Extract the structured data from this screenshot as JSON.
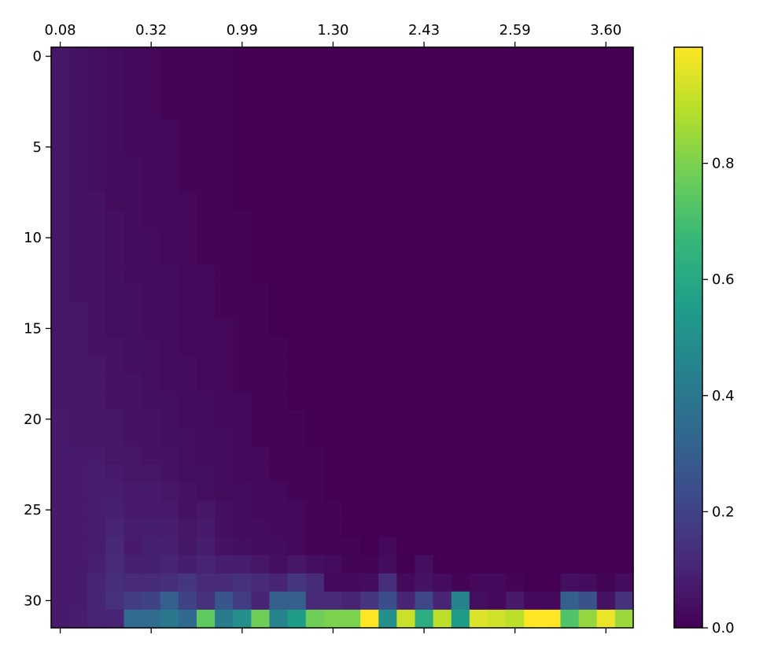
{
  "chart_data": {
    "type": "heatmap",
    "title": "",
    "xlabel": "",
    "ylabel": "",
    "rows": 32,
    "cols": 32,
    "x_tick_labels": [
      "0.08",
      "0.32",
      "0.99",
      "1.30",
      "2.43",
      "2.59",
      "3.60"
    ],
    "x_tick_positions": [
      0,
      5,
      10,
      15,
      20,
      25,
      30
    ],
    "y_tick_labels": [
      "0",
      "5",
      "10",
      "15",
      "20",
      "25",
      "30"
    ],
    "y_tick_positions": [
      0,
      5,
      10,
      15,
      20,
      25,
      30
    ],
    "colorbar": {
      "min": 0.0,
      "max": 1.0,
      "tick_values": [
        0.0,
        0.2,
        0.4,
        0.6,
        0.8
      ],
      "tick_labels": [
        "0.0",
        "0.2",
        "0.4",
        "0.6",
        "0.8"
      ],
      "colormap": "viridis"
    },
    "colors": {
      "viridis_stops": [
        "#440154",
        "#482878",
        "#3e4989",
        "#31688e",
        "#26828e",
        "#1f9e89",
        "#35b779",
        "#6ece58",
        "#b5de2b",
        "#fde725"
      ]
    },
    "values": [
      [
        0.06,
        0.05,
        0.04,
        0.03,
        0.02,
        0.02,
        0.01,
        0.01,
        0.01,
        0.01,
        0,
        0,
        0,
        0,
        0,
        0,
        0,
        0,
        0,
        0,
        0,
        0,
        0,
        0,
        0,
        0,
        0,
        0,
        0,
        0,
        0,
        0
      ],
      [
        0.06,
        0.05,
        0.04,
        0.03,
        0.02,
        0.02,
        0.01,
        0.01,
        0.01,
        0.01,
        0,
        0,
        0,
        0,
        0,
        0,
        0,
        0,
        0,
        0,
        0,
        0,
        0,
        0,
        0,
        0,
        0,
        0,
        0,
        0,
        0,
        0
      ],
      [
        0.06,
        0.05,
        0.04,
        0.03,
        0.02,
        0.02,
        0.01,
        0.01,
        0.01,
        0.01,
        0,
        0,
        0,
        0,
        0,
        0,
        0,
        0,
        0,
        0,
        0,
        0,
        0,
        0,
        0,
        0,
        0,
        0,
        0,
        0,
        0,
        0
      ],
      [
        0.06,
        0.05,
        0.04,
        0.03,
        0.02,
        0.02,
        0.01,
        0.01,
        0.01,
        0.01,
        0,
        0,
        0,
        0,
        0,
        0,
        0,
        0,
        0,
        0,
        0,
        0,
        0,
        0,
        0,
        0,
        0,
        0,
        0,
        0,
        0,
        0
      ],
      [
        0.06,
        0.05,
        0.04,
        0.03,
        0.02,
        0.02,
        0.02,
        0.01,
        0.01,
        0.01,
        0,
        0,
        0,
        0,
        0,
        0,
        0,
        0,
        0,
        0,
        0,
        0,
        0,
        0,
        0,
        0,
        0,
        0,
        0,
        0,
        0,
        0
      ],
      [
        0.06,
        0.05,
        0.04,
        0.03,
        0.02,
        0.02,
        0.02,
        0.01,
        0.01,
        0.01,
        0,
        0,
        0,
        0,
        0,
        0,
        0,
        0,
        0,
        0,
        0,
        0,
        0,
        0,
        0,
        0,
        0,
        0,
        0,
        0,
        0,
        0
      ],
      [
        0.06,
        0.05,
        0.04,
        0.03,
        0.03,
        0.02,
        0.02,
        0.01,
        0.01,
        0.01,
        0,
        0,
        0,
        0,
        0,
        0,
        0,
        0,
        0,
        0,
        0,
        0,
        0,
        0,
        0,
        0,
        0,
        0,
        0,
        0,
        0,
        0
      ],
      [
        0.06,
        0.05,
        0.04,
        0.03,
        0.03,
        0.02,
        0.02,
        0.01,
        0.01,
        0.01,
        0,
        0,
        0,
        0,
        0,
        0,
        0,
        0,
        0,
        0,
        0,
        0,
        0,
        0,
        0,
        0,
        0,
        0,
        0,
        0,
        0,
        0
      ],
      [
        0.06,
        0.05,
        0.05,
        0.03,
        0.03,
        0.02,
        0.02,
        0.02,
        0.01,
        0.01,
        0,
        0,
        0,
        0,
        0,
        0,
        0,
        0,
        0,
        0,
        0,
        0,
        0,
        0,
        0,
        0,
        0,
        0,
        0,
        0,
        0,
        0
      ],
      [
        0.06,
        0.05,
        0.05,
        0.04,
        0.03,
        0.02,
        0.02,
        0.02,
        0.01,
        0.01,
        0.01,
        0,
        0,
        0,
        0,
        0,
        0,
        0,
        0,
        0,
        0,
        0,
        0,
        0,
        0,
        0,
        0,
        0,
        0,
        0,
        0,
        0
      ],
      [
        0.06,
        0.05,
        0.05,
        0.04,
        0.03,
        0.03,
        0.02,
        0.02,
        0.01,
        0.01,
        0.01,
        0,
        0,
        0,
        0,
        0,
        0,
        0,
        0,
        0,
        0,
        0,
        0,
        0,
        0,
        0,
        0,
        0,
        0,
        0,
        0,
        0
      ],
      [
        0.06,
        0.05,
        0.05,
        0.04,
        0.03,
        0.03,
        0.02,
        0.02,
        0.01,
        0.01,
        0.01,
        0,
        0,
        0,
        0,
        0,
        0,
        0,
        0,
        0,
        0,
        0,
        0,
        0,
        0,
        0,
        0,
        0,
        0,
        0,
        0,
        0
      ],
      [
        0.06,
        0.05,
        0.05,
        0.04,
        0.03,
        0.03,
        0.03,
        0.02,
        0.02,
        0.01,
        0.01,
        0,
        0,
        0,
        0,
        0,
        0,
        0,
        0,
        0,
        0,
        0,
        0,
        0,
        0,
        0,
        0,
        0,
        0,
        0,
        0,
        0
      ],
      [
        0.06,
        0.05,
        0.05,
        0.04,
        0.04,
        0.03,
        0.03,
        0.02,
        0.02,
        0.01,
        0.01,
        0.01,
        0,
        0,
        0,
        0,
        0,
        0,
        0,
        0,
        0,
        0,
        0,
        0,
        0,
        0,
        0,
        0,
        0,
        0,
        0,
        0
      ],
      [
        0.06,
        0.06,
        0.05,
        0.04,
        0.04,
        0.03,
        0.03,
        0.02,
        0.02,
        0.01,
        0.01,
        0.01,
        0,
        0,
        0,
        0,
        0,
        0,
        0,
        0,
        0,
        0,
        0,
        0,
        0,
        0,
        0,
        0,
        0,
        0,
        0,
        0
      ],
      [
        0.06,
        0.06,
        0.05,
        0.04,
        0.04,
        0.03,
        0.03,
        0.02,
        0.02,
        0.02,
        0.01,
        0.01,
        0,
        0,
        0,
        0,
        0,
        0,
        0,
        0,
        0,
        0,
        0,
        0,
        0,
        0,
        0,
        0,
        0,
        0,
        0,
        0
      ],
      [
        0.06,
        0.06,
        0.05,
        0.05,
        0.04,
        0.04,
        0.03,
        0.02,
        0.02,
        0.02,
        0.01,
        0.01,
        0.01,
        0,
        0,
        0,
        0,
        0,
        0,
        0,
        0,
        0,
        0,
        0,
        0,
        0,
        0,
        0,
        0,
        0,
        0,
        0
      ],
      [
        0.06,
        0.06,
        0.06,
        0.05,
        0.04,
        0.04,
        0.03,
        0.03,
        0.02,
        0.02,
        0.01,
        0.01,
        0.01,
        0,
        0,
        0,
        0,
        0,
        0,
        0,
        0,
        0,
        0,
        0,
        0,
        0,
        0,
        0,
        0,
        0,
        0,
        0
      ],
      [
        0.06,
        0.06,
        0.06,
        0.05,
        0.05,
        0.04,
        0.03,
        0.03,
        0.02,
        0.02,
        0.01,
        0.01,
        0.01,
        0,
        0,
        0,
        0,
        0,
        0,
        0,
        0,
        0,
        0,
        0,
        0,
        0,
        0,
        0,
        0,
        0,
        0,
        0
      ],
      [
        0.06,
        0.06,
        0.06,
        0.05,
        0.05,
        0.04,
        0.04,
        0.03,
        0.03,
        0.02,
        0.02,
        0.01,
        0.01,
        0,
        0,
        0,
        0,
        0,
        0,
        0,
        0,
        0,
        0,
        0,
        0,
        0,
        0,
        0,
        0,
        0,
        0,
        0
      ],
      [
        0.07,
        0.06,
        0.06,
        0.06,
        0.05,
        0.05,
        0.04,
        0.03,
        0.03,
        0.02,
        0.02,
        0.01,
        0.01,
        0.01,
        0,
        0,
        0,
        0,
        0,
        0,
        0,
        0,
        0,
        0,
        0,
        0,
        0,
        0,
        0,
        0,
        0,
        0
      ],
      [
        0.07,
        0.06,
        0.06,
        0.06,
        0.05,
        0.05,
        0.04,
        0.04,
        0.03,
        0.03,
        0.02,
        0.01,
        0.01,
        0.01,
        0,
        0,
        0,
        0,
        0,
        0,
        0,
        0,
        0,
        0,
        0,
        0,
        0,
        0,
        0,
        0,
        0,
        0
      ],
      [
        0.07,
        0.07,
        0.07,
        0.06,
        0.06,
        0.05,
        0.05,
        0.04,
        0.03,
        0.03,
        0.02,
        0.02,
        0.01,
        0.01,
        0.01,
        0,
        0,
        0,
        0,
        0,
        0,
        0,
        0,
        0,
        0,
        0,
        0,
        0,
        0,
        0,
        0,
        0
      ],
      [
        0.07,
        0.07,
        0.08,
        0.07,
        0.06,
        0.06,
        0.05,
        0.04,
        0.04,
        0.03,
        0.02,
        0.02,
        0.01,
        0.01,
        0.01,
        0,
        0,
        0,
        0,
        0,
        0,
        0,
        0,
        0,
        0,
        0,
        0,
        0,
        0,
        0,
        0,
        0
      ],
      [
        0.07,
        0.07,
        0.08,
        0.08,
        0.07,
        0.07,
        0.06,
        0.05,
        0.04,
        0.03,
        0.03,
        0.02,
        0.02,
        0.01,
        0.01,
        0,
        0,
        0,
        0,
        0,
        0,
        0,
        0,
        0,
        0,
        0,
        0,
        0,
        0,
        0,
        0,
        0
      ],
      [
        0.07,
        0.07,
        0.08,
        0.09,
        0.07,
        0.07,
        0.07,
        0.05,
        0.06,
        0.04,
        0.03,
        0.02,
        0.02,
        0.02,
        0.01,
        0.01,
        0,
        0,
        0,
        0,
        0,
        0,
        0,
        0,
        0,
        0,
        0,
        0,
        0,
        0,
        0,
        0
      ],
      [
        0.07,
        0.07,
        0.08,
        0.1,
        0.08,
        0.08,
        0.08,
        0.06,
        0.07,
        0.04,
        0.03,
        0.03,
        0.02,
        0.02,
        0.01,
        0.01,
        0,
        0,
        0,
        0,
        0,
        0,
        0,
        0,
        0,
        0,
        0,
        0,
        0,
        0,
        0,
        0
      ],
      [
        0.07,
        0.07,
        0.08,
        0.11,
        0.07,
        0.09,
        0.09,
        0.06,
        0.08,
        0.05,
        0.04,
        0.03,
        0.03,
        0.02,
        0.01,
        0.01,
        0.01,
        0,
        0.02,
        0,
        0,
        0,
        0,
        0,
        0,
        0,
        0,
        0,
        0,
        0,
        0,
        0
      ],
      [
        0.07,
        0.07,
        0.09,
        0.12,
        0.09,
        0.09,
        0.1,
        0.08,
        0.1,
        0.08,
        0.08,
        0.06,
        0.04,
        0.06,
        0.04,
        0.03,
        0.01,
        0.01,
        0.03,
        0,
        0.04,
        0,
        0,
        0,
        0,
        0,
        0,
        0,
        0,
        0,
        0,
        0
      ],
      [
        0.07,
        0.07,
        0.1,
        0.13,
        0.12,
        0.12,
        0.13,
        0.16,
        0.12,
        0.12,
        0.14,
        0.12,
        0.1,
        0.16,
        0.12,
        0.02,
        0.02,
        0.03,
        0.13,
        0.02,
        0.05,
        0.03,
        0.01,
        0.02,
        0.02,
        0.01,
        0,
        0,
        0.04,
        0.03,
        0.01,
        0.03
      ],
      [
        0.07,
        0.07,
        0.1,
        0.14,
        0.18,
        0.2,
        0.3,
        0.2,
        0.14,
        0.27,
        0.18,
        0.1,
        0.3,
        0.3,
        0.12,
        0.12,
        0.1,
        0.15,
        0.24,
        0.1,
        0.22,
        0.1,
        0.45,
        0.04,
        0.02,
        0.07,
        0.02,
        0.02,
        0.3,
        0.25,
        0.05,
        0.14
      ],
      [
        0.07,
        0.08,
        0.1,
        0.1,
        0.35,
        0.35,
        0.4,
        0.34,
        0.75,
        0.42,
        0.5,
        0.78,
        0.45,
        0.55,
        0.78,
        0.8,
        0.8,
        1.0,
        0.5,
        0.92,
        0.62,
        0.9,
        0.55,
        0.95,
        0.93,
        0.9,
        1.0,
        1.0,
        0.72,
        0.84,
        0.97,
        0.85
      ]
    ]
  }
}
